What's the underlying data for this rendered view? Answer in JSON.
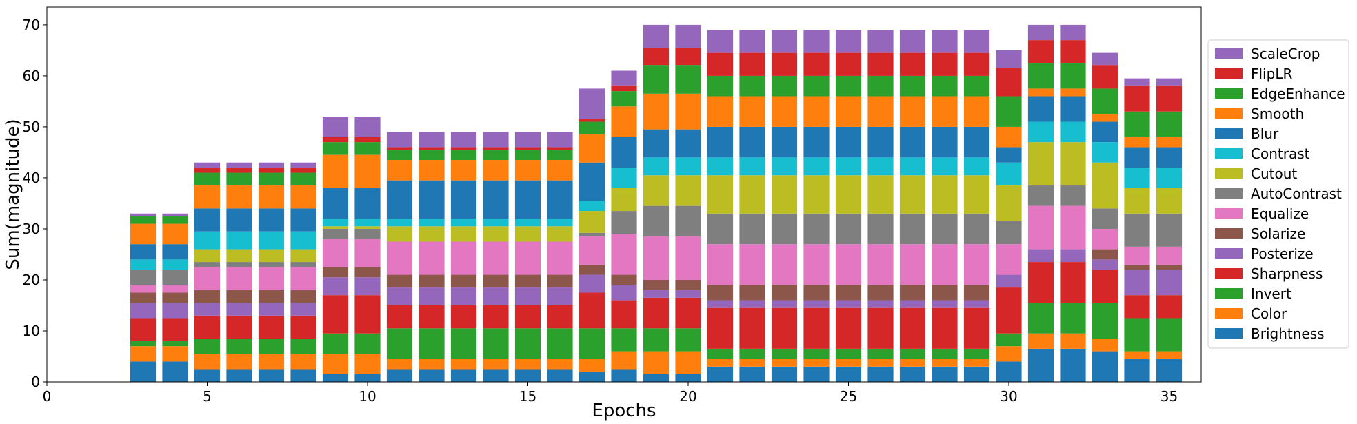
{
  "chart_data": {
    "type": "bar",
    "stacked": true,
    "xlabel": "Epochs",
    "ylabel": "Sum(magnitude)",
    "xlim": [
      0,
      36
    ],
    "ylim": [
      0,
      73.5
    ],
    "xticks": [
      "0",
      "5",
      "10",
      "15",
      "20",
      "25",
      "30",
      "35"
    ],
    "yticks": [
      "0",
      "10",
      "20",
      "30",
      "40",
      "50",
      "60",
      "70"
    ],
    "legend_position": "right",
    "x": [
      3,
      4,
      5,
      6,
      7,
      8,
      9,
      10,
      11,
      12,
      13,
      14,
      15,
      16,
      17,
      18,
      19,
      20,
      21,
      22,
      23,
      24,
      25,
      26,
      27,
      28,
      29,
      30,
      31,
      32,
      33,
      34,
      35
    ],
    "series": [
      {
        "name": "Brightness",
        "color": "#1f77b4",
        "values": [
          4,
          4,
          2.5,
          2.5,
          2.5,
          2.5,
          1.5,
          1.5,
          2.5,
          2.5,
          2.5,
          2.5,
          2.5,
          2.5,
          2,
          2.5,
          1.5,
          1.5,
          3,
          3,
          3,
          3,
          3,
          3,
          3,
          3,
          3,
          4,
          6.5,
          6.5,
          6,
          4.5,
          4.5
        ]
      },
      {
        "name": "Color",
        "color": "#ff7f0e",
        "values": [
          3,
          3,
          3,
          3,
          3,
          3,
          4,
          4,
          2,
          2,
          2,
          2,
          2,
          2,
          2.5,
          3.5,
          4.5,
          4.5,
          1.5,
          1.5,
          1.5,
          1.5,
          1.5,
          1.5,
          1.5,
          1.5,
          1.5,
          3,
          3,
          3,
          2.5,
          1.5,
          1.5
        ]
      },
      {
        "name": "Invert",
        "color": "#2ca02c",
        "values": [
          1,
          1,
          3,
          3,
          3,
          3,
          4,
          4,
          6,
          6,
          6,
          6,
          6,
          6,
          6,
          4.5,
          4.5,
          4.5,
          2,
          2,
          2,
          2,
          2,
          2,
          2,
          2,
          2,
          2.5,
          6,
          6,
          7,
          6.5,
          6.5
        ]
      },
      {
        "name": "Sharpness",
        "color": "#d62728",
        "values": [
          4.5,
          4.5,
          4.5,
          4.5,
          4.5,
          4.5,
          7.5,
          7.5,
          4.5,
          4.5,
          4.5,
          4.5,
          4.5,
          4.5,
          7,
          5.5,
          6,
          6,
          8,
          8,
          8,
          8,
          8,
          8,
          8,
          8,
          8,
          9,
          8,
          8,
          6.5,
          4.5,
          4.5
        ]
      },
      {
        "name": "Posterize",
        "color": "#9467bd",
        "values": [
          3,
          3,
          2.5,
          2.5,
          2.5,
          2.5,
          3.5,
          3.5,
          3.5,
          3.5,
          3.5,
          3.5,
          3.5,
          3.5,
          3.5,
          3,
          1.5,
          1.5,
          1.5,
          1.5,
          1.5,
          1.5,
          1.5,
          1.5,
          1.5,
          1.5,
          1.5,
          2.5,
          2.5,
          2.5,
          2,
          5,
          5
        ]
      },
      {
        "name": "Solarize",
        "color": "#8c564b",
        "values": [
          2,
          2,
          2.5,
          2.5,
          2.5,
          2.5,
          2,
          2,
          2.5,
          2.5,
          2.5,
          2.5,
          2.5,
          2.5,
          2,
          2,
          2,
          2,
          3,
          3,
          3,
          3,
          3,
          3,
          3,
          3,
          3,
          0,
          0,
          0,
          2,
          1,
          1
        ]
      },
      {
        "name": "Equalize",
        "color": "#e377c2",
        "values": [
          1.5,
          1.5,
          4.5,
          4.5,
          4.5,
          4.5,
          5.5,
          5.5,
          6.5,
          6.5,
          6.5,
          6.5,
          6.5,
          6.5,
          5.5,
          8,
          8.5,
          8.5,
          8,
          8,
          8,
          8,
          8,
          8,
          8,
          8,
          8,
          6,
          8.5,
          8.5,
          4,
          3.5,
          3.5
        ]
      },
      {
        "name": "AutoContrast",
        "color": "#7f7f7f",
        "values": [
          3,
          3,
          1,
          1,
          1,
          1,
          2,
          2,
          0,
          0,
          0,
          0,
          0,
          0,
          0.7,
          4.5,
          6,
          6,
          6,
          6,
          6,
          6,
          6,
          6,
          6,
          6,
          6,
          4.5,
          4,
          4,
          4,
          6.5,
          6.5
        ]
      },
      {
        "name": "Cutout",
        "color": "#bcbd22",
        "values": [
          0,
          0,
          2.5,
          2.5,
          2.5,
          2.5,
          0.5,
          0.5,
          3,
          3,
          3,
          3,
          3,
          3,
          4.3,
          4.5,
          6,
          6,
          7.5,
          7.5,
          7.5,
          7.5,
          7.5,
          7.5,
          7.5,
          7.5,
          7.5,
          7,
          8.5,
          8.5,
          9,
          5,
          5
        ]
      },
      {
        "name": "Contrast",
        "color": "#17becf",
        "values": [
          2,
          2,
          3.5,
          3.5,
          3.5,
          3.5,
          1.5,
          1.5,
          1.5,
          1.5,
          1.5,
          1.5,
          1.5,
          1.5,
          2,
          4,
          3.5,
          3.5,
          3.5,
          3.5,
          3.5,
          3.5,
          3.5,
          3.5,
          3.5,
          3.5,
          3.5,
          4.5,
          4,
          4,
          4,
          4,
          4
        ]
      },
      {
        "name": "Blur",
        "color": "#1f77b4",
        "values": [
          3,
          3,
          4.5,
          4.5,
          4.5,
          4.5,
          6,
          6,
          7.5,
          7.5,
          7.5,
          7.5,
          7.5,
          7.5,
          7.5,
          6,
          5.5,
          5.5,
          6,
          6,
          6,
          6,
          6,
          6,
          6,
          6,
          6,
          3,
          5,
          5,
          4,
          4,
          4
        ]
      },
      {
        "name": "Smooth",
        "color": "#ff7f0e",
        "values": [
          4,
          4,
          4.5,
          4.5,
          4.5,
          4.5,
          6.5,
          6.5,
          4,
          4,
          4,
          4,
          4,
          4,
          5.5,
          6,
          7,
          7,
          6,
          6,
          6,
          6,
          6,
          6,
          6,
          6,
          6,
          4,
          1.5,
          1.5,
          1.5,
          2,
          2
        ]
      },
      {
        "name": "EdgeEnhance",
        "color": "#2ca02c",
        "values": [
          1.5,
          1.5,
          2.5,
          2.5,
          2.5,
          2.5,
          2.5,
          2.5,
          2,
          2,
          2,
          2,
          2,
          2,
          2.5,
          3,
          5.5,
          5.5,
          4,
          4,
          4,
          4,
          4,
          4,
          4,
          4,
          4,
          6,
          5,
          5,
          5,
          5,
          5
        ]
      },
      {
        "name": "FlipLR",
        "color": "#d62728",
        "values": [
          0,
          0,
          1,
          1,
          1,
          1,
          1,
          1,
          0.5,
          0.5,
          0.5,
          0.5,
          0.5,
          0.5,
          0.5,
          1,
          3.5,
          3.5,
          4.5,
          4.5,
          4.5,
          4.5,
          4.5,
          4.5,
          4.5,
          4.5,
          4.5,
          5.5,
          4.5,
          4.5,
          4.5,
          5,
          5
        ]
      },
      {
        "name": "ScaleCrop",
        "color": "#9467bd",
        "values": [
          0.5,
          0.5,
          1,
          1,
          1,
          1,
          4,
          4,
          3,
          3,
          3,
          3,
          3,
          3,
          6,
          3,
          4.5,
          4.5,
          4.5,
          4.5,
          4.5,
          4.5,
          4.5,
          4.5,
          4.5,
          4.5,
          4.5,
          3.5,
          3,
          3,
          2.5,
          1.5,
          1.5
        ]
      }
    ]
  }
}
